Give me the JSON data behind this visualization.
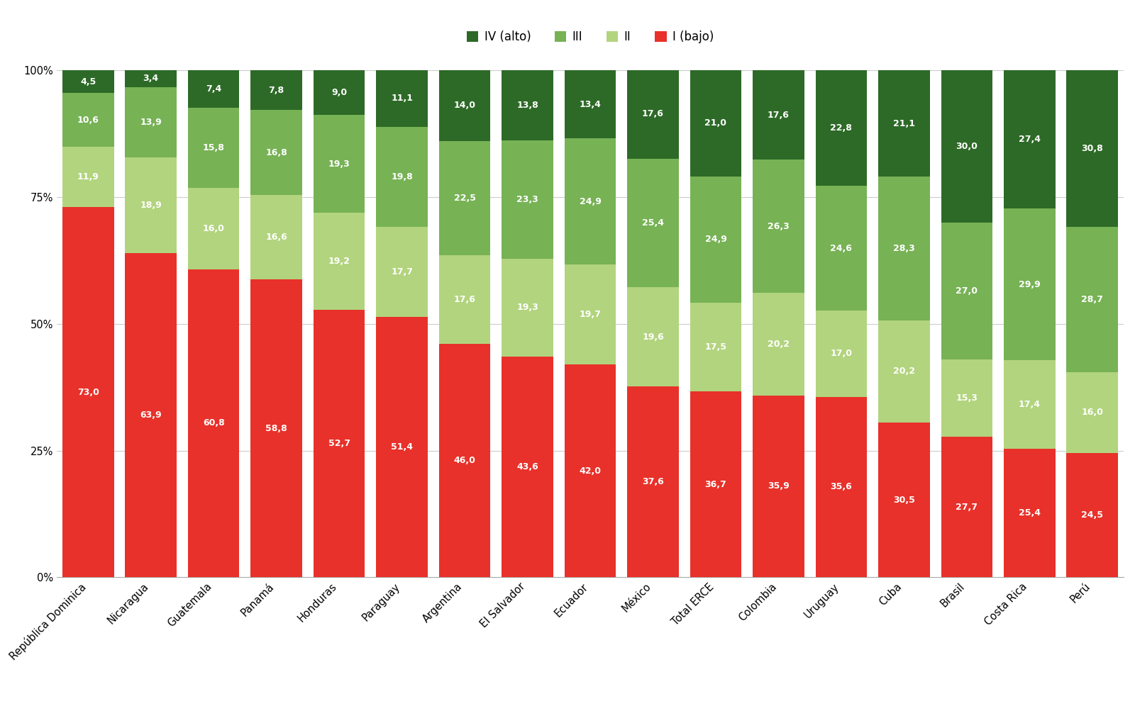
{
  "countries": [
    "República Dominica",
    "Nicaragua",
    "Guatemala",
    "Panamá",
    "Honduras",
    "Paraguay",
    "Argentina",
    "El Salvador",
    "Ecuador",
    "México",
    "Total ERCE",
    "Colombia",
    "Uruguay",
    "Cuba",
    "Brasil",
    "Costa Rica",
    "Perú"
  ],
  "level_I": [
    73.0,
    63.9,
    60.8,
    58.8,
    52.7,
    51.4,
    46.0,
    43.6,
    42.0,
    37.6,
    36.7,
    35.9,
    35.6,
    30.5,
    27.7,
    25.4,
    24.5
  ],
  "level_II": [
    11.9,
    18.9,
    16.0,
    16.6,
    19.2,
    17.7,
    17.6,
    19.3,
    19.7,
    19.6,
    17.5,
    20.2,
    17.0,
    20.2,
    15.3,
    17.4,
    16.0
  ],
  "level_III": [
    10.6,
    13.9,
    15.8,
    16.8,
    19.3,
    19.8,
    22.5,
    23.3,
    24.9,
    25.4,
    24.9,
    26.3,
    24.6,
    28.3,
    27.0,
    29.9,
    28.7
  ],
  "level_IV": [
    4.5,
    3.4,
    7.4,
    7.8,
    9.0,
    11.1,
    14.0,
    13.8,
    13.4,
    17.6,
    21.0,
    17.6,
    22.8,
    21.1,
    30.0,
    27.4,
    30.8
  ],
  "color_I": "#e8312a",
  "color_II": "#b2d47e",
  "color_III": "#77b255",
  "color_IV": "#2d6a27",
  "legend_labels": [
    "IV (alto)",
    "III",
    "II",
    "I (bajo)"
  ],
  "bg_color": "#ffffff",
  "grid_color": "#cccccc",
  "label_fontsize": 9.0,
  "axis_fontsize": 10.5,
  "bar_width": 0.82
}
